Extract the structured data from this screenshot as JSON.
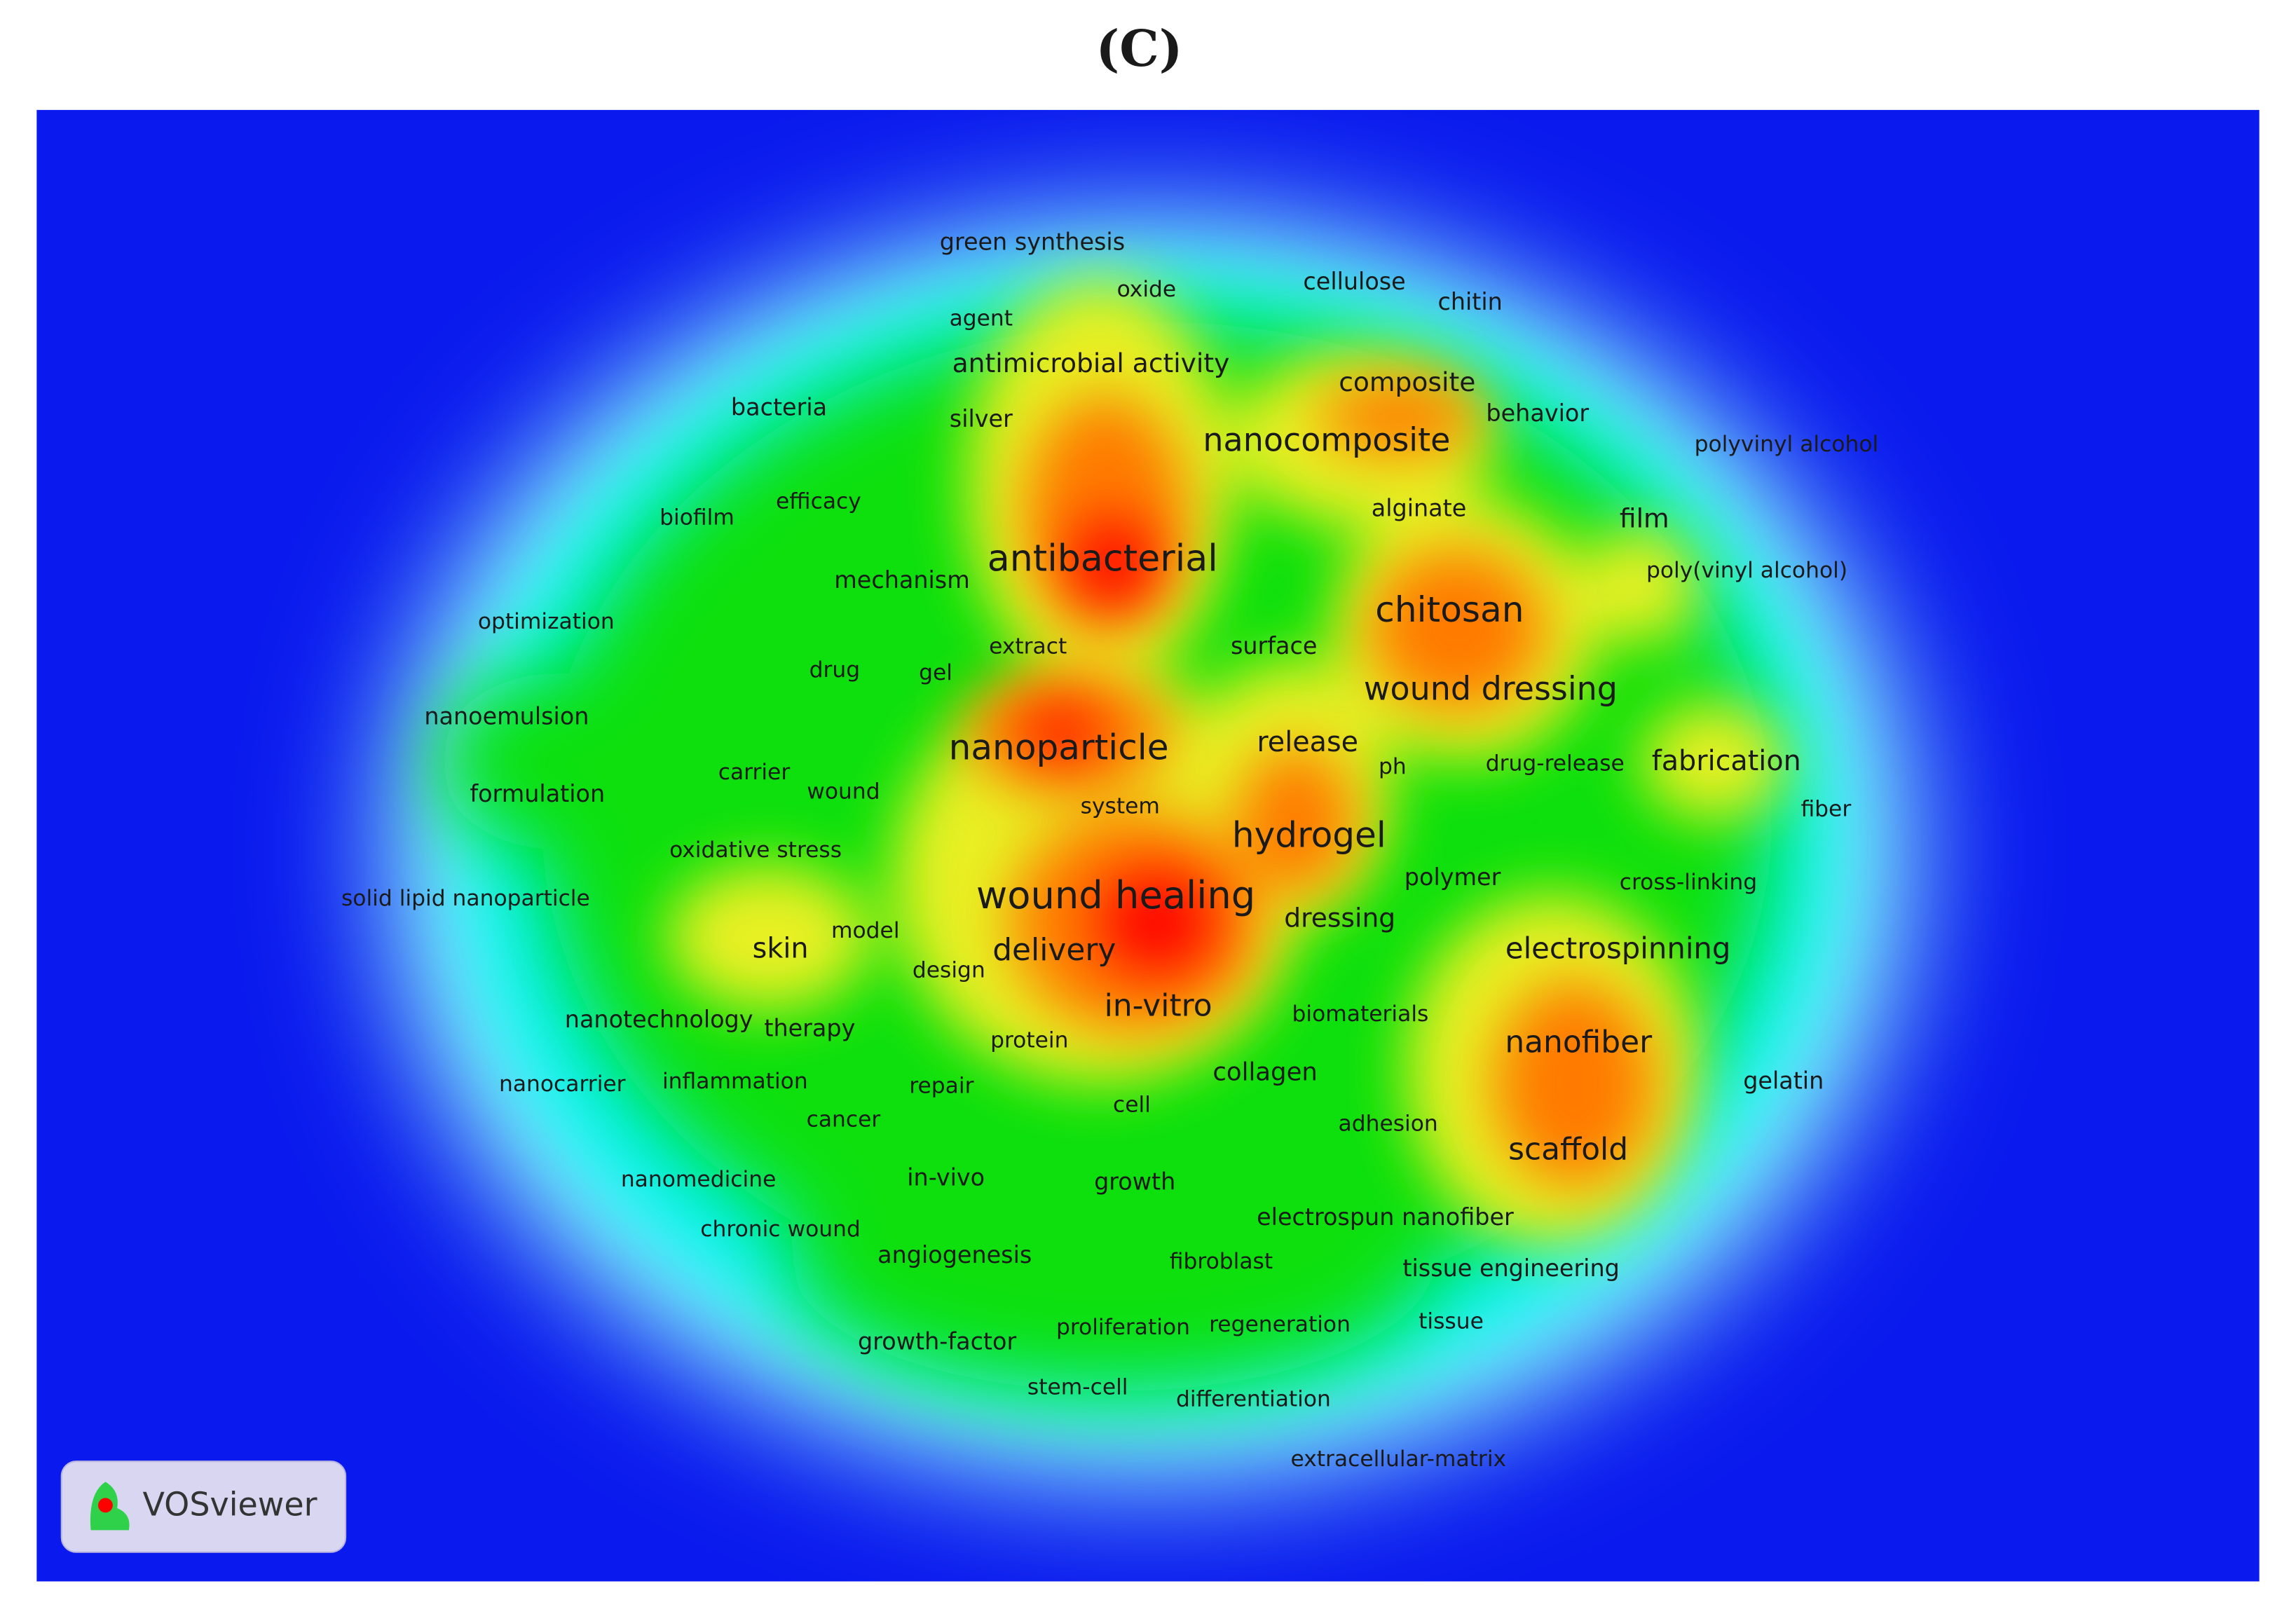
{
  "title": "(C)",
  "logo": "VOSviewer",
  "terms": [
    "green synthesis",
    "oxide",
    "cellulose",
    "chitin",
    "agent",
    "antimicrobial activity",
    "composite",
    "behavior",
    "bacteria",
    "silver",
    "nanocomposite",
    "polyvinyl alcohol",
    "efficacy",
    "biofilm",
    "alginate",
    "film",
    "antibacterial",
    "mechanism",
    "chitosan",
    "poly(vinyl alcohol)",
    "optimization",
    "extract",
    "surface",
    "drug",
    "gel",
    "wound dressing",
    "nanoemulsion",
    "nanoparticle",
    "release",
    "ph",
    "drug-release",
    "fabrication",
    "carrier",
    "wound",
    "formulation",
    "system",
    "fiber",
    "hydrogel",
    "oxidative stress",
    "polymer",
    "cross-linking",
    "solid lipid nanoparticle",
    "wound healing",
    "dressing",
    "model",
    "skin",
    "electrospinning",
    "delivery",
    "design",
    "in-vitro",
    "nanotechnology",
    "therapy",
    "biomaterials",
    "protein",
    "nanofiber",
    "nanocarrier",
    "inflammation",
    "repair",
    "gelatin",
    "collagen",
    "cell",
    "adhesion",
    "cancer",
    "scaffold",
    "nanomedicine",
    "in-vivo",
    "growth",
    "electrospun nanofiber",
    "chronic wound",
    "angiogenesis",
    "fibroblast",
    "tissue engineering",
    "growth-factor",
    "proliferation",
    "regeneration",
    "tissue",
    "stem-cell",
    "differentiation",
    "extracellular-matrix"
  ]
}
